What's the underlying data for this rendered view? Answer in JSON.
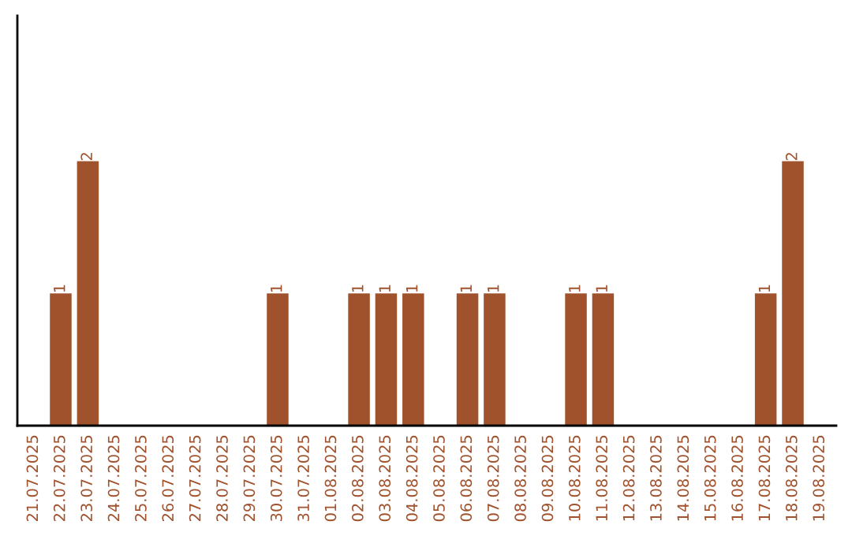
{
  "chart_data": {
    "type": "bar",
    "categories": [
      "21.07.2025",
      "22.07.2025",
      "23.07.2025",
      "24.07.2025",
      "25.07.2025",
      "26.07.2025",
      "27.07.2025",
      "28.07.2025",
      "29.07.2025",
      "30.07.2025",
      "31.07.2025",
      "01.08.2025",
      "02.08.2025",
      "03.08.2025",
      "04.08.2025",
      "05.08.2025",
      "06.08.2025",
      "07.08.2025",
      "08.08.2025",
      "09.08.2025",
      "10.08.2025",
      "11.08.2025",
      "12.08.2025",
      "13.08.2025",
      "14.08.2025",
      "15.08.2025",
      "16.08.2025",
      "17.08.2025",
      "18.08.2025",
      "19.08.2025"
    ],
    "values": [
      0,
      1,
      2,
      0,
      0,
      0,
      0,
      0,
      0,
      1,
      0,
      0,
      1,
      1,
      1,
      0,
      1,
      1,
      0,
      0,
      1,
      1,
      0,
      0,
      0,
      0,
      0,
      1,
      2,
      0
    ],
    "value_labels": [
      null,
      "1",
      "2",
      null,
      null,
      null,
      null,
      null,
      null,
      "1",
      null,
      null,
      "1",
      "1",
      "1",
      null,
      "1",
      "1",
      null,
      null,
      "1",
      "1",
      null,
      null,
      null,
      null,
      null,
      "1",
      "2",
      null
    ],
    "color": "#a0522d",
    "ylim": [
      0,
      3.1
    ],
    "tick_labels": "x",
    "grid": false,
    "legend": false
  }
}
